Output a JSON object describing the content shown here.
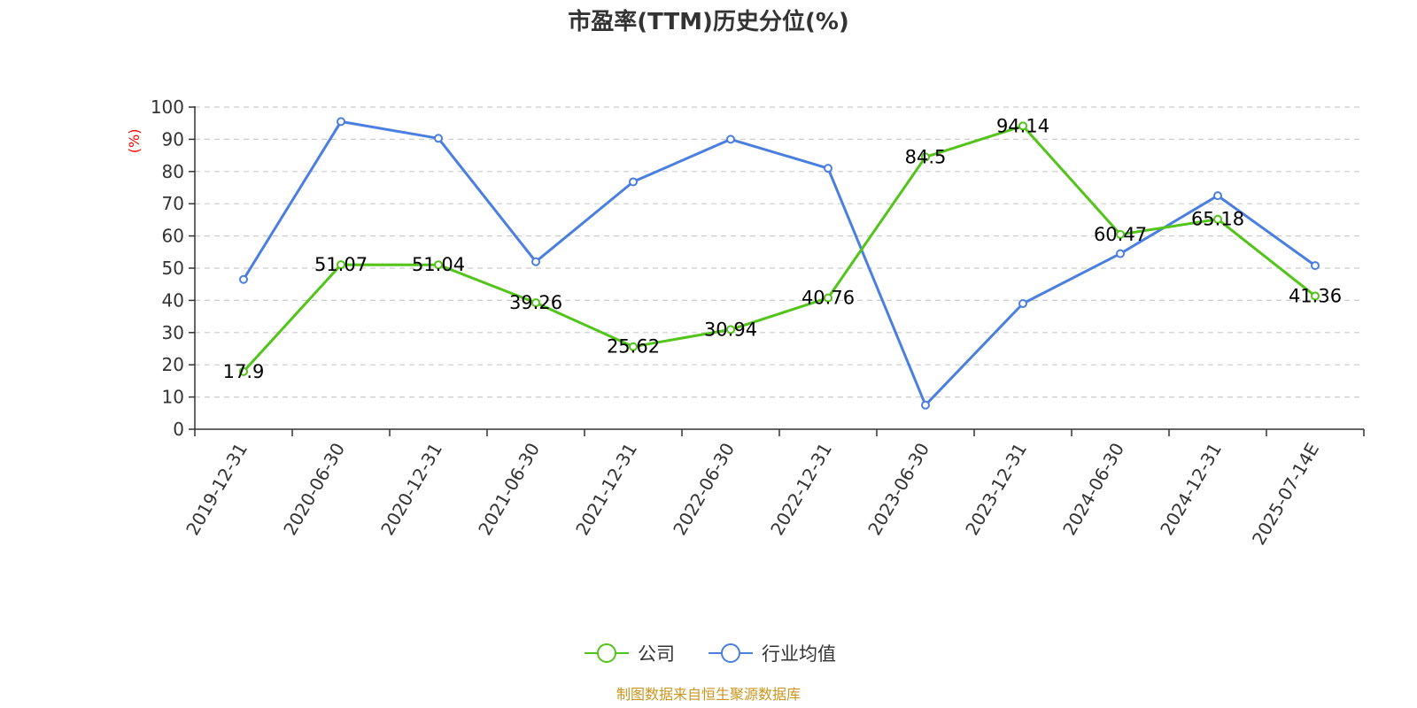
{
  "title": "市盈率(TTM)历史分位(%)",
  "source": "制图数据来自恒生聚源数据库",
  "source_color": "#c8961e",
  "chart_data": {
    "type": "line",
    "title": "市盈率(TTM)历史分位(%)",
    "ylabel": "(%)",
    "ylabel_color": "#ff0000",
    "xlabel": "",
    "ylim": [
      0,
      100
    ],
    "yticks": [
      0,
      10,
      20,
      30,
      40,
      50,
      60,
      70,
      80,
      90,
      100
    ],
    "grid": true,
    "legend_position": "bottom-center",
    "categories": [
      "2019-12-31",
      "2020-06-30",
      "2020-12-31",
      "2021-06-30",
      "2021-12-31",
      "2022-06-30",
      "2022-12-31",
      "2023-06-30",
      "2023-12-31",
      "2024-06-30",
      "2024-12-31",
      "2025-07-14E"
    ],
    "series": [
      {
        "name": "公司",
        "color": "#52c41a",
        "show_labels": true,
        "values": [
          17.9,
          51.07,
          51.04,
          39.26,
          25.62,
          30.94,
          40.76,
          84.5,
          94.14,
          60.47,
          65.18,
          41.36
        ],
        "labels": [
          "17.9",
          "51.07",
          "51.04",
          "39.26",
          "25.62",
          "30.94",
          "40.76",
          "84.5",
          "94.14",
          "60.47",
          "65.18",
          "41.36"
        ]
      },
      {
        "name": "行业均值",
        "color": "#4a7fe0",
        "show_labels": false,
        "values": [
          46.5,
          95.5,
          90.3,
          52.0,
          76.8,
          90.0,
          81.0,
          7.5,
          39.0,
          54.5,
          72.5,
          50.8
        ]
      }
    ]
  }
}
